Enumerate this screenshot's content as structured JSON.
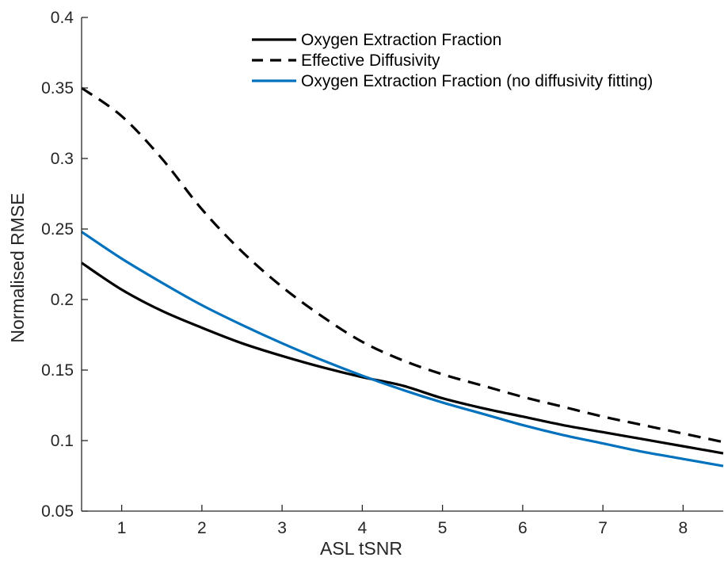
{
  "chart_data": {
    "type": "line",
    "title": "",
    "xlabel": "ASL tSNR",
    "ylabel": "Normalised RMSE",
    "xlim": [
      0.5,
      8.5
    ],
    "ylim": [
      0.05,
      0.4
    ],
    "x_ticks": [
      1,
      2,
      3,
      4,
      5,
      6,
      7,
      8
    ],
    "x_tick_labels": [
      "1",
      "2",
      "3",
      "4",
      "5",
      "6",
      "7",
      "8"
    ],
    "y_ticks": [
      0.05,
      0.1,
      0.15,
      0.2,
      0.25,
      0.3,
      0.35,
      0.4
    ],
    "y_tick_labels": [
      "0.05",
      "0.1",
      "0.15",
      "0.2",
      "0.25",
      "0.3",
      "0.35",
      "0.4"
    ],
    "grid": false,
    "legend_position": "top-right",
    "x": [
      0.5,
      1,
      1.5,
      2,
      2.5,
      3,
      3.5,
      4,
      4.5,
      5,
      5.5,
      6,
      6.5,
      7,
      7.5,
      8,
      8.5
    ],
    "series": [
      {
        "name": "Oxygen Extraction Fraction",
        "color": "#000000",
        "dash": "solid",
        "values": [
          0.226,
          0.207,
          0.192,
          0.18,
          0.169,
          0.16,
          0.152,
          0.145,
          0.139,
          0.13,
          0.123,
          0.117,
          0.111,
          0.106,
          0.101,
          0.096,
          0.091
        ]
      },
      {
        "name": "Effective Diffusivity",
        "color": "#000000",
        "dash": "dashed",
        "values": [
          0.35,
          0.33,
          0.3,
          0.264,
          0.234,
          0.209,
          0.188,
          0.17,
          0.157,
          0.147,
          0.139,
          0.131,
          0.124,
          0.117,
          0.111,
          0.105,
          0.099
        ]
      },
      {
        "name": "Oxygen Extraction Fraction (no diffusivity fitting)",
        "color": "#0072BD",
        "dash": "solid",
        "values": [
          0.248,
          0.229,
          0.212,
          0.196,
          0.182,
          0.169,
          0.157,
          0.146,
          0.136,
          0.127,
          0.119,
          0.111,
          0.104,
          0.098,
          0.092,
          0.087,
          0.082
        ]
      }
    ]
  }
}
